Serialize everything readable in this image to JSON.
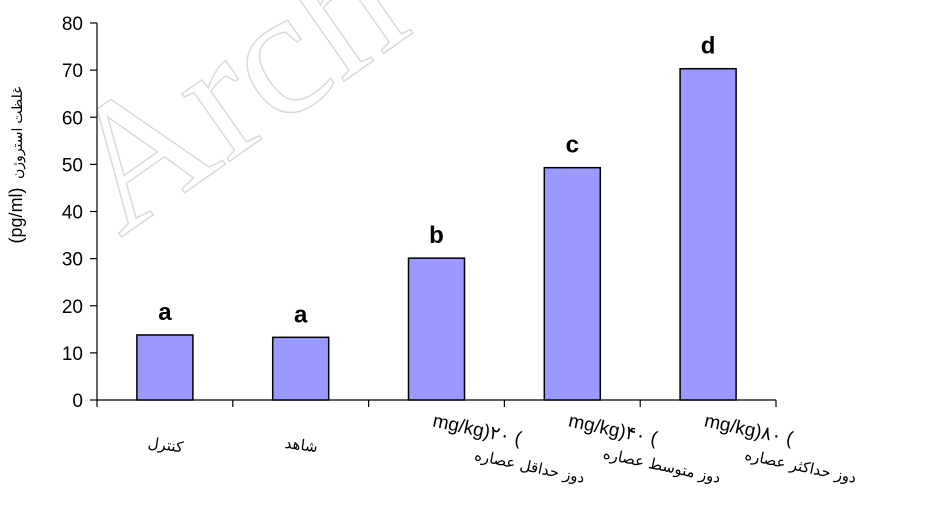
{
  "chart_data": {
    "type": "bar",
    "categories": [
      "کنترل",
      "شاهد",
      "دوز حداقل عصاره (۲۰ mg/kg)",
      "دوز متوسط عصاره (۴۰ mg/kg)",
      "دوز حداکثر عصاره (۸۰ mg/kg)"
    ],
    "category_lines": [
      {
        "unit": "",
        "text": "کنترل"
      },
      {
        "unit": "",
        "text": "شاهد"
      },
      {
        "unit": "mg/kg)۲۰ (",
        "text": "دوز حداقل عصاره"
      },
      {
        "unit": "mg/kg)۴۰ (",
        "text": "دوز متوسط عصاره"
      },
      {
        "unit": "mg/kg)۸۰ (",
        "text": "دوز حداکثر عصاره"
      }
    ],
    "values": [
      13.8,
      13.3,
      30.1,
      49.3,
      70.3
    ],
    "significance_labels": [
      "a",
      "a",
      "b",
      "c",
      "d"
    ],
    "ylabel": "غلظت استروژن (pg/ml)",
    "ylabel_text": "غلظت استروژن",
    "ylabel_unit": "(pg/ml)",
    "ylim": [
      0,
      80
    ],
    "yticks": [
      0,
      10,
      20,
      30,
      40,
      50,
      60,
      70,
      80
    ],
    "bar_color": "#9999FF",
    "bar_edge_color": "#000000",
    "grid": false,
    "watermark": "Arch"
  }
}
